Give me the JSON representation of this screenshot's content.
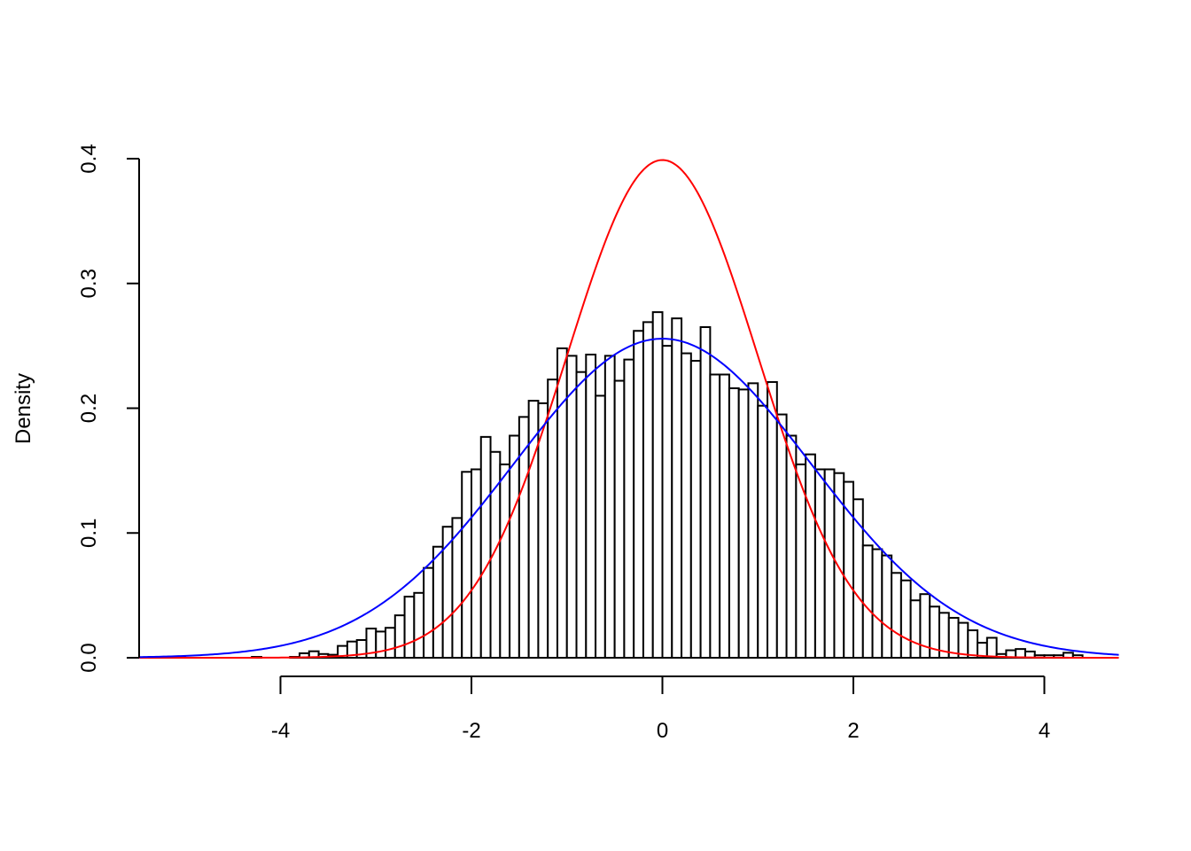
{
  "chart_data": {
    "type": "bar",
    "title": "",
    "xlabel": "",
    "ylabel": "Density",
    "xlim": [
      -5.48,
      4.78
    ],
    "ylim": [
      0,
      0.4
    ],
    "grid": false,
    "x_ticks": [
      "-4",
      "-2",
      "0",
      "2",
      "4"
    ],
    "y_ticks": [
      "0.0",
      "0.1",
      "0.2",
      "0.3",
      "0.4"
    ],
    "histogram": {
      "bin_start": -5.1,
      "bin_width": 0.1,
      "densities": [
        0.0007,
        0,
        0,
        0,
        0,
        0,
        0,
        0,
        0.0007,
        0,
        0,
        0,
        0.0007,
        0.0036,
        0.0052,
        0.003,
        0.0024,
        0.0095,
        0.013,
        0.0142,
        0.0234,
        0.021,
        0.024,
        0.034,
        0.049,
        0.052,
        0.072,
        0.089,
        0.105,
        0.112,
        0.149,
        0.151,
        0.177,
        0.165,
        0.155,
        0.178,
        0.193,
        0.206,
        0.204,
        0.223,
        0.248,
        0.242,
        0.229,
        0.243,
        0.21,
        0.242,
        0.222,
        0.239,
        0.262,
        0.269,
        0.277,
        0.25,
        0.272,
        0.244,
        0.238,
        0.265,
        0.227,
        0.227,
        0.216,
        0.215,
        0.22,
        0.202,
        0.221,
        0.195,
        0.178,
        0.155,
        0.163,
        0.151,
        0.151,
        0.148,
        0.141,
        0.127,
        0.09,
        0.087,
        0.082,
        0.068,
        0.062,
        0.046,
        0.051,
        0.041,
        0.036,
        0.032,
        0.028,
        0.022,
        0.012,
        0.016,
        0.003,
        0.006,
        0.007,
        0.005,
        0.002,
        0.002,
        0.002,
        0.004,
        0.002
      ],
      "fill": "#ffffff",
      "border": "#000000"
    },
    "curves": [
      {
        "kind": "normal-density",
        "mean": 0,
        "sd": 1,
        "color": "#ff0000"
      },
      {
        "kind": "normal-density",
        "mean": 0,
        "sd": 1.56,
        "color": "#0000ff"
      }
    ]
  }
}
